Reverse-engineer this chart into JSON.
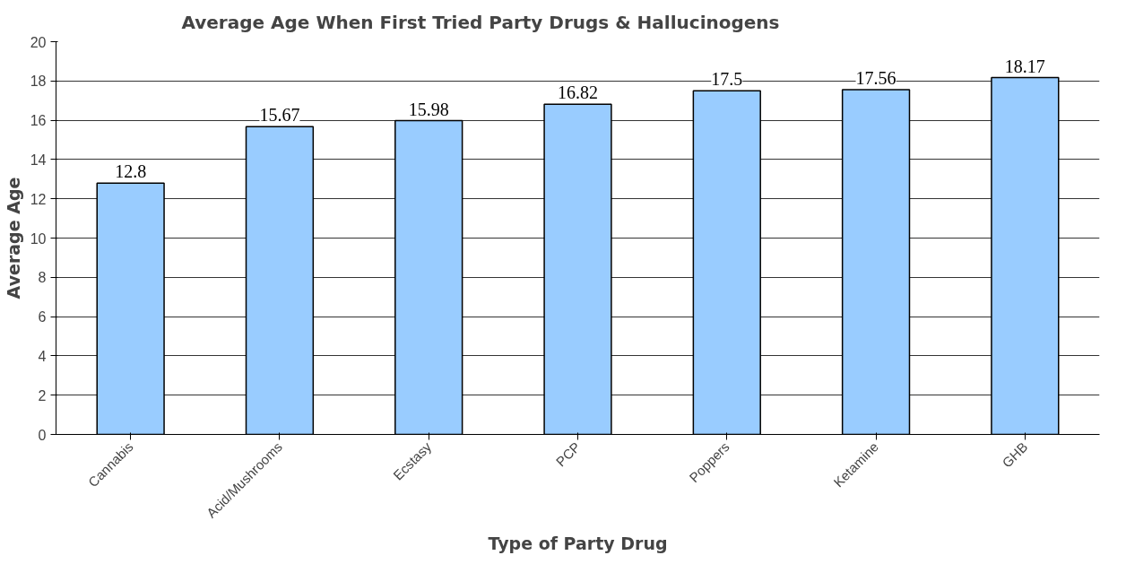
{
  "chart_data": {
    "type": "bar",
    "title": "Average Age When First Tried Party Drugs & Hallucinogens",
    "xlabel": "Type of Party Drug",
    "ylabel": "Average Age",
    "categories": [
      "Cannabis",
      "Acid/Mushrooms",
      "Ecstasy",
      "PCP",
      "Poppers",
      "Ketamine",
      "GHB"
    ],
    "values": [
      12.8,
      15.67,
      15.98,
      16.82,
      17.5,
      17.56,
      18.17
    ],
    "color": "#99ccff",
    "ylim": [
      0,
      20
    ],
    "yticks": [
      0,
      2,
      4,
      6,
      8,
      10,
      12,
      14,
      16,
      18,
      20
    ],
    "grid": "y",
    "data_labels": true
  }
}
